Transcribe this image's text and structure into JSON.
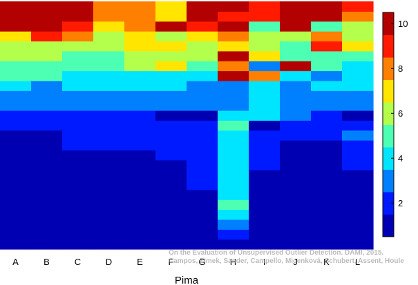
{
  "chart_data": {
    "type": "heatmap",
    "title": "",
    "xlabel": "Pima",
    "ylabel": "",
    "categories": [
      "A",
      "B",
      "C",
      "D",
      "E",
      "F",
      "G",
      "H",
      "I",
      "J",
      "K",
      "L"
    ],
    "colorbar": {
      "min": 0.5,
      "max": 10.5,
      "ticks": [
        2,
        4,
        6,
        8,
        10
      ],
      "colormap": "jet"
    },
    "rows_bottom_to_top": 25,
    "columns": [
      {
        "name": "A",
        "values": [
          1,
          1,
          1,
          1,
          1,
          1,
          1,
          1,
          1,
          1,
          1,
          1,
          2,
          2,
          3,
          3,
          4,
          5,
          5,
          6,
          6,
          7,
          10,
          10,
          10
        ]
      },
      {
        "name": "B",
        "values": [
          1,
          1,
          1,
          1,
          1,
          1,
          1,
          1,
          1,
          1,
          1,
          1,
          2,
          2,
          3,
          3,
          3,
          5,
          5,
          6,
          6,
          9,
          10,
          10,
          10
        ]
      },
      {
        "name": "C",
        "values": [
          1,
          1,
          1,
          1,
          1,
          1,
          1,
          1,
          1,
          1,
          2,
          2,
          2,
          2,
          3,
          3,
          4,
          4,
          5,
          5,
          6,
          8,
          9,
          10,
          10
        ]
      },
      {
        "name": "D",
        "values": [
          1,
          1,
          1,
          1,
          1,
          1,
          1,
          1,
          1,
          1,
          2,
          2,
          2,
          2,
          3,
          3,
          4,
          4,
          5,
          5,
          6,
          6,
          7,
          8,
          8
        ]
      },
      {
        "name": "E",
        "values": [
          1,
          1,
          1,
          1,
          1,
          1,
          1,
          1,
          1,
          1,
          2,
          2,
          2,
          2,
          3,
          3,
          4,
          4,
          6,
          6,
          7,
          7,
          8,
          8,
          8
        ]
      },
      {
        "name": "F",
        "values": [
          1,
          1,
          1,
          1,
          1,
          1,
          1,
          1,
          1,
          2,
          2,
          2,
          2,
          1,
          3,
          3,
          4,
          4,
          7,
          6,
          7,
          6,
          10,
          7,
          7
        ]
      },
      {
        "name": "G",
        "values": [
          1,
          1,
          1,
          1,
          1,
          1,
          2,
          2,
          2,
          2,
          2,
          2,
          2,
          1,
          3,
          3,
          3,
          4,
          5,
          6,
          6,
          7,
          9,
          10,
          10
        ]
      },
      {
        "name": "H",
        "values": [
          1,
          2,
          3,
          4,
          5,
          4,
          4,
          4,
          4,
          4,
          4,
          4,
          5,
          4,
          3,
          3,
          3,
          10,
          8,
          10,
          7,
          8,
          10,
          9,
          10
        ]
      },
      {
        "name": "I",
        "values": [
          1,
          1,
          1,
          1,
          1,
          1,
          1,
          1,
          2,
          2,
          2,
          2,
          1,
          4,
          4,
          4,
          4,
          8,
          3,
          7,
          6,
          6,
          5,
          9,
          9
        ]
      },
      {
        "name": "J",
        "values": [
          1,
          1,
          1,
          1,
          1,
          1,
          1,
          1,
          1,
          1,
          1,
          2,
          2,
          3,
          3,
          3,
          3,
          4,
          10,
          5,
          5,
          6,
          10,
          10,
          10
        ]
      },
      {
        "name": "K",
        "values": [
          1,
          1,
          1,
          1,
          1,
          1,
          1,
          1,
          1,
          1,
          1,
          2,
          2,
          2,
          3,
          3,
          4,
          3,
          5,
          5,
          9,
          8,
          5,
          10,
          10
        ]
      },
      {
        "name": "L",
        "values": [
          1,
          1,
          1,
          1,
          1,
          1,
          1,
          1,
          2,
          2,
          2,
          3,
          2,
          1,
          3,
          3,
          4,
          4,
          4,
          5,
          7,
          6,
          6,
          8,
          9
        ]
      }
    ]
  },
  "watermark": {
    "line1": "On the Evaluation of Unsupervised Outlier Detection. DAMI, 2015.",
    "line2": "Campos, Zimek, Sander, Campello, Micenková, Schubert, Assent, Houle"
  }
}
